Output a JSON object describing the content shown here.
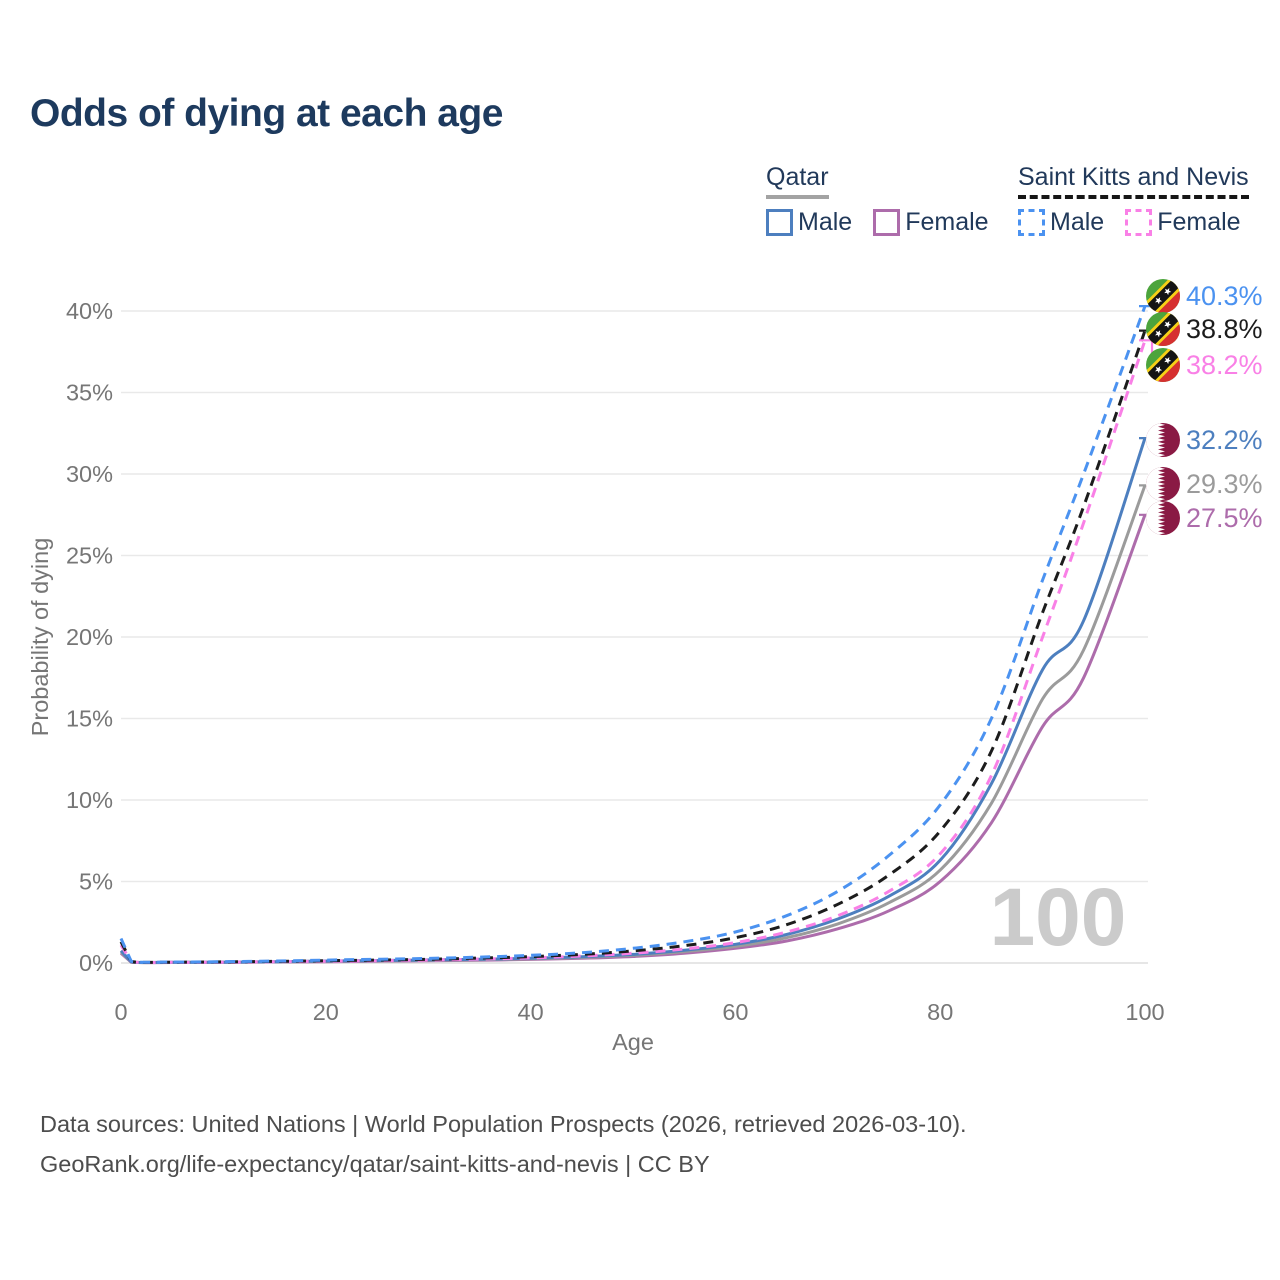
{
  "title": "Odds of dying at each age",
  "legend": {
    "qatar": {
      "label": "Qatar",
      "male": "Male",
      "female": "Female"
    },
    "skn": {
      "label": "Saint Kitts and Nevis",
      "male": "Male",
      "female": "Female"
    }
  },
  "footer": {
    "line1": "Data sources: United Nations | World Population Prospects (2026, retrieved 2026-03-10).",
    "line2": "GeoRank.org/life-expectancy/qatar/saint-kitts-and-nevis | CC BY"
  },
  "colors": {
    "title_text": "#1d3a5e",
    "axis_text": "#767676",
    "gridline": "#e9e9e9",
    "watermark": "#cbcbcb",
    "footer_text": "#4d4d4d",
    "qatar_underline": "#a3a3a3",
    "skn_underline": "#161616",
    "qatar_male": "#4d7fbf",
    "qatar_all": "#9b9b9b",
    "qatar_female": "#ad6cab",
    "skn_male": "#4b92f0",
    "skn_all": "#1c1c1c",
    "skn_female": "#f980e6"
  },
  "chart_data": {
    "type": "line",
    "title": "Odds of dying at each age",
    "xlabel": "Age",
    "ylabel": "Probability of dying",
    "x_ticks": [
      0,
      20,
      40,
      60,
      80,
      100
    ],
    "y_ticks": [
      "0%",
      "5%",
      "10%",
      "15%",
      "20%",
      "25%",
      "30%",
      "35%",
      "40%"
    ],
    "xlim": [
      0,
      100
    ],
    "ylim_pct": [
      0,
      42
    ],
    "grid": "horizontal-only",
    "legend_position": "top-right",
    "watermark": "100",
    "ages": [
      0,
      1,
      5,
      10,
      15,
      20,
      25,
      30,
      35,
      40,
      45,
      50,
      55,
      60,
      65,
      70,
      75,
      80,
      85,
      90,
      94,
      100
    ],
    "series": [
      {
        "id": "skn-male",
        "country": "Saint Kitts and Nevis",
        "sex": "Male",
        "line_style": "dashed",
        "color": "#4b92f0",
        "flag": "kn",
        "end_label": "40.3%",
        "end_value_pct": 40.3,
        "values_pct": [
          1.5,
          0.1,
          0.06,
          0.08,
          0.12,
          0.18,
          0.23,
          0.28,
          0.36,
          0.47,
          0.63,
          0.9,
          1.3,
          1.9,
          2.9,
          4.4,
          6.6,
          9.7,
          15.0,
          23.5,
          30.0,
          40.3
        ]
      },
      {
        "id": "skn-all",
        "country": "Saint Kitts and Nevis",
        "sex": "All",
        "line_style": "dashed",
        "color": "#1c1c1c",
        "flag": "kn",
        "end_label": "38.8%",
        "end_value_pct": 38.8,
        "values_pct": [
          1.3,
          0.09,
          0.05,
          0.07,
          0.1,
          0.14,
          0.18,
          0.23,
          0.3,
          0.39,
          0.53,
          0.74,
          1.06,
          1.55,
          2.35,
          3.6,
          5.4,
          8.1,
          13.0,
          21.5,
          28.0,
          38.8
        ]
      },
      {
        "id": "skn-female",
        "country": "Saint Kitts and Nevis",
        "sex": "Female",
        "line_style": "dashed",
        "color": "#f980e6",
        "flag": "kn",
        "end_label": "38.2%",
        "end_value_pct": 38.2,
        "values_pct": [
          1.1,
          0.08,
          0.04,
          0.05,
          0.08,
          0.11,
          0.14,
          0.18,
          0.24,
          0.31,
          0.43,
          0.6,
          0.86,
          1.25,
          1.9,
          2.9,
          4.4,
          6.7,
          11.5,
          20.0,
          27.0,
          38.2
        ]
      },
      {
        "id": "qatar-male",
        "country": "Qatar",
        "sex": "Male",
        "line_style": "solid",
        "color": "#4d7fbf",
        "flag": "qa",
        "end_label": "32.2%",
        "end_value_pct": 32.2,
        "values_pct": [
          0.75,
          0.06,
          0.04,
          0.05,
          0.08,
          0.12,
          0.15,
          0.19,
          0.23,
          0.29,
          0.38,
          0.53,
          0.78,
          1.15,
          1.75,
          2.7,
          4.1,
          6.3,
          11.0,
          18.0,
          21.0,
          32.2
        ]
      },
      {
        "id": "qatar-all",
        "country": "Qatar",
        "sex": "All",
        "line_style": "solid",
        "color": "#9b9b9b",
        "flag": "qa",
        "end_label": "29.3%",
        "end_value_pct": 29.3,
        "values_pct": [
          0.68,
          0.055,
          0.035,
          0.045,
          0.07,
          0.1,
          0.13,
          0.16,
          0.2,
          0.26,
          0.34,
          0.47,
          0.7,
          1.02,
          1.55,
          2.4,
          3.7,
          5.7,
          9.8,
          16.2,
          19.2,
          29.3
        ]
      },
      {
        "id": "qatar-female",
        "country": "Qatar",
        "sex": "Female",
        "line_style": "solid",
        "color": "#ad6cab",
        "flag": "qa",
        "end_label": "27.5%",
        "end_value_pct": 27.5,
        "values_pct": [
          0.6,
          0.05,
          0.03,
          0.04,
          0.06,
          0.08,
          0.11,
          0.14,
          0.17,
          0.22,
          0.29,
          0.4,
          0.6,
          0.9,
          1.35,
          2.1,
          3.2,
          5.0,
          8.6,
          14.5,
          17.5,
          27.5
        ]
      }
    ]
  }
}
